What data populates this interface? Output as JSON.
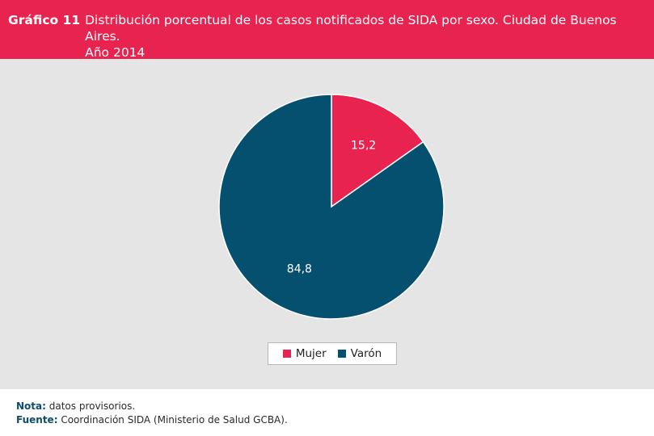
{
  "header": {
    "label": "Gráfico 11",
    "title_line1": "Distribución porcentual de los casos notificados de SIDA por sexo. Ciudad de Buenos Aires.",
    "title_line2": "Año 2014"
  },
  "chart_data": {
    "type": "pie",
    "categories": [
      "Mujer",
      "Varón"
    ],
    "values": [
      15.2,
      84.8
    ],
    "value_labels": [
      "15,2",
      "84,8"
    ],
    "colors": [
      "#e8234f",
      "#05506e"
    ],
    "start": "top, clockwise",
    "legend_placement": "bottom-center"
  },
  "legend": {
    "items": [
      {
        "label": "Mujer",
        "color": "#e8234f"
      },
      {
        "label": "Varón",
        "color": "#05506e"
      }
    ]
  },
  "footer": {
    "nota_key": "Nota:",
    "nota_text": " datos provisorios.",
    "fuente_key": "Fuente:",
    "fuente_text": " Coordinación SIDA (Ministerio de Salud GCBA)."
  }
}
